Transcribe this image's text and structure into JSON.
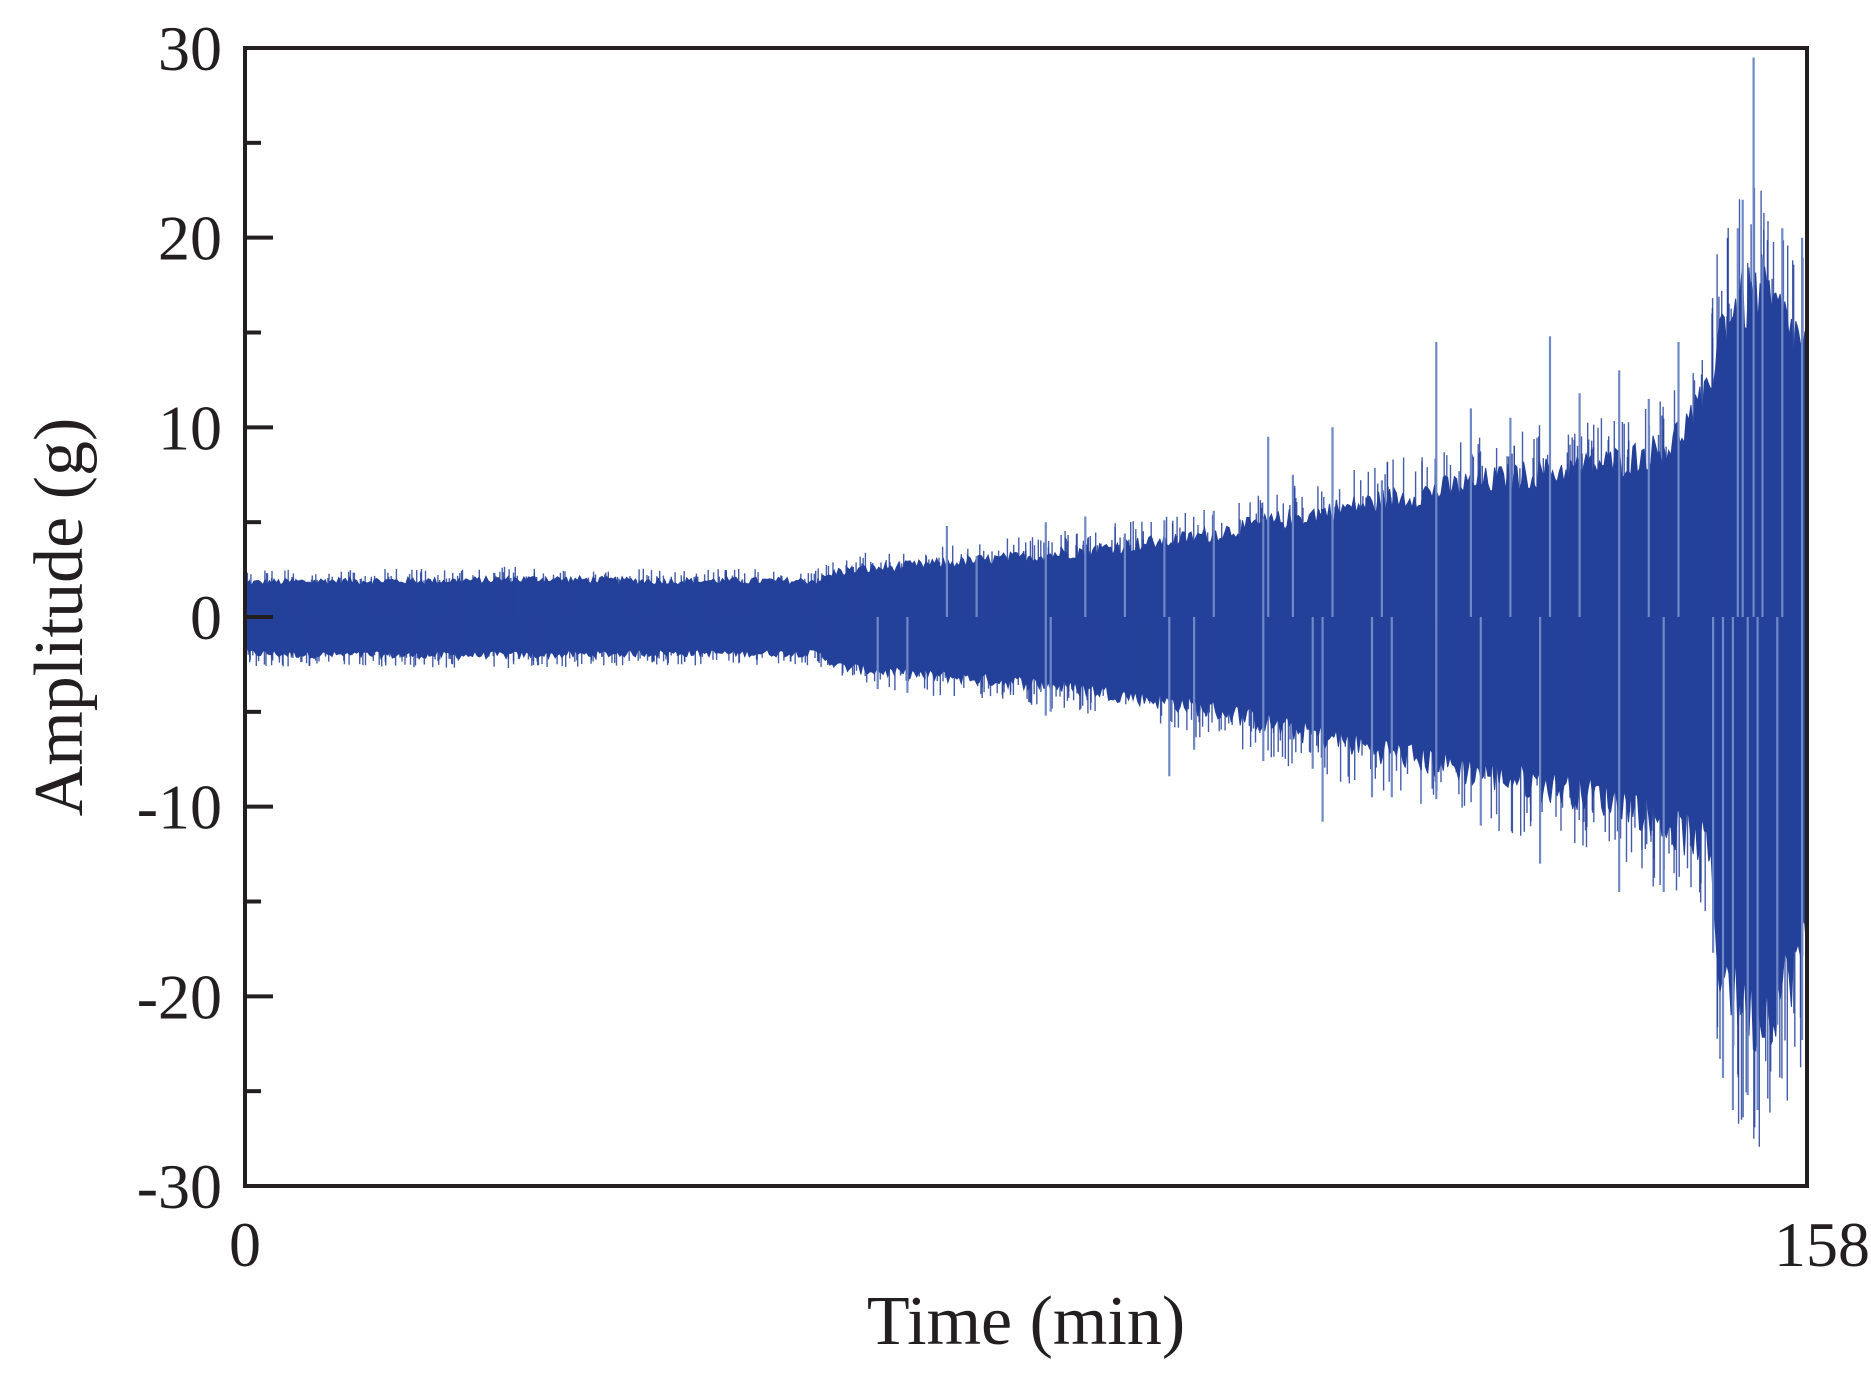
{
  "chart_data": {
    "type": "area",
    "title": "",
    "xlabel": "Time (min)",
    "ylabel": "Amplitude (g)",
    "xlim": [
      0,
      158
    ],
    "ylim": [
      -30,
      30
    ],
    "x_tick_labels": [
      "0",
      "158"
    ],
    "y_ticks": [
      30,
      20,
      10,
      0,
      -10,
      -20,
      -30
    ],
    "y_tick_labels": [
      "30",
      "20",
      "10",
      "0",
      "-10",
      "-20",
      "-30"
    ],
    "y_minor_step": 5,
    "grid": false,
    "legend": "none",
    "colors": {
      "signal": "#24419a",
      "spikes": "#6f88c6",
      "axis": "#231f20"
    },
    "series": [
      {
        "description_values": "upper / lower envelope of the vibration amplitude",
        "x": [
          0,
          10,
          20,
          30,
          40,
          50,
          58,
          60,
          65,
          70,
          75,
          80,
          85,
          90,
          95,
          100,
          105,
          110,
          115,
          120,
          125,
          130,
          135,
          140,
          144,
          148,
          149,
          151,
          153,
          155,
          158
        ],
        "upper": [
          1.8,
          1.9,
          1.9,
          2.0,
          1.9,
          1.9,
          1.9,
          2.4,
          2.6,
          2.8,
          3.0,
          3.2,
          3.5,
          3.8,
          4.1,
          4.6,
          5.1,
          5.6,
          6.1,
          6.6,
          7.1,
          7.5,
          7.8,
          8.3,
          9.0,
          11.5,
          15.0,
          16.5,
          17.0,
          16.0,
          14.0
        ],
        "lower": [
          -1.9,
          -2.0,
          -2.0,
          -2.0,
          -1.9,
          -1.9,
          -1.9,
          -2.6,
          -2.9,
          -3.1,
          -3.3,
          -3.5,
          -3.8,
          -4.2,
          -4.6,
          -5.1,
          -5.8,
          -6.4,
          -7.0,
          -7.6,
          -8.2,
          -8.7,
          -9.2,
          -9.8,
          -11.0,
          -12.0,
          -18.0,
          -20.0,
          -21.0,
          -20.0,
          -17.0
        ]
      }
    ],
    "spikes": [
      {
        "x": 71,
        "y": 4.8
      },
      {
        "x": 74,
        "y": 3.2
      },
      {
        "x": 81,
        "y": 5.0
      },
      {
        "x": 85,
        "y": 5.3
      },
      {
        "x": 89,
        "y": 4.4
      },
      {
        "x": 93,
        "y": 5.1
      },
      {
        "x": 98,
        "y": 5.6
      },
      {
        "x": 103,
        "y": 5.2
      },
      {
        "x": 103.5,
        "y": 9.5
      },
      {
        "x": 106,
        "y": 7.5
      },
      {
        "x": 110,
        "y": 10.0
      },
      {
        "x": 115,
        "y": 7.2
      },
      {
        "x": 120.5,
        "y": 14.5
      },
      {
        "x": 124,
        "y": 11.0
      },
      {
        "x": 128,
        "y": 10.5
      },
      {
        "x": 132,
        "y": 14.8
      },
      {
        "x": 135,
        "y": 11.8
      },
      {
        "x": 139,
        "y": 13.0
      },
      {
        "x": 142,
        "y": 11.5
      },
      {
        "x": 145,
        "y": 14.5
      },
      {
        "x": 151,
        "y": 20.5
      },
      {
        "x": 151.5,
        "y": 22.0
      },
      {
        "x": 152.6,
        "y": 29.5
      },
      {
        "x": 153.5,
        "y": 19.0
      },
      {
        "x": 155.5,
        "y": 20.5
      },
      {
        "x": 157.5,
        "y": 20.0
      },
      {
        "x": 64,
        "y": -3.8
      },
      {
        "x": 67,
        "y": -4.0
      },
      {
        "x": 81,
        "y": -5.2
      },
      {
        "x": 81.5,
        "y": -5.0
      },
      {
        "x": 93.5,
        "y": -8.4
      },
      {
        "x": 96,
        "y": -7.0
      },
      {
        "x": 103,
        "y": -7.6
      },
      {
        "x": 108,
        "y": -8.0
      },
      {
        "x": 109,
        "y": -10.8
      },
      {
        "x": 114,
        "y": -9.5
      },
      {
        "x": 116,
        "y": -9.5
      },
      {
        "x": 120.5,
        "y": -9.6
      },
      {
        "x": 125,
        "y": -11.0
      },
      {
        "x": 131,
        "y": -13.0
      },
      {
        "x": 139,
        "y": -14.5
      },
      {
        "x": 143.5,
        "y": -14.5
      },
      {
        "x": 148.5,
        "y": -17.7
      },
      {
        "x": 149.5,
        "y": -24.3
      },
      {
        "x": 150.5,
        "y": -26.0
      },
      {
        "x": 152,
        "y": -25.2
      },
      {
        "x": 153,
        "y": -26.0
      },
      {
        "x": 155,
        "y": -21.5
      },
      {
        "x": 157.5,
        "y": -22.3
      }
    ]
  }
}
